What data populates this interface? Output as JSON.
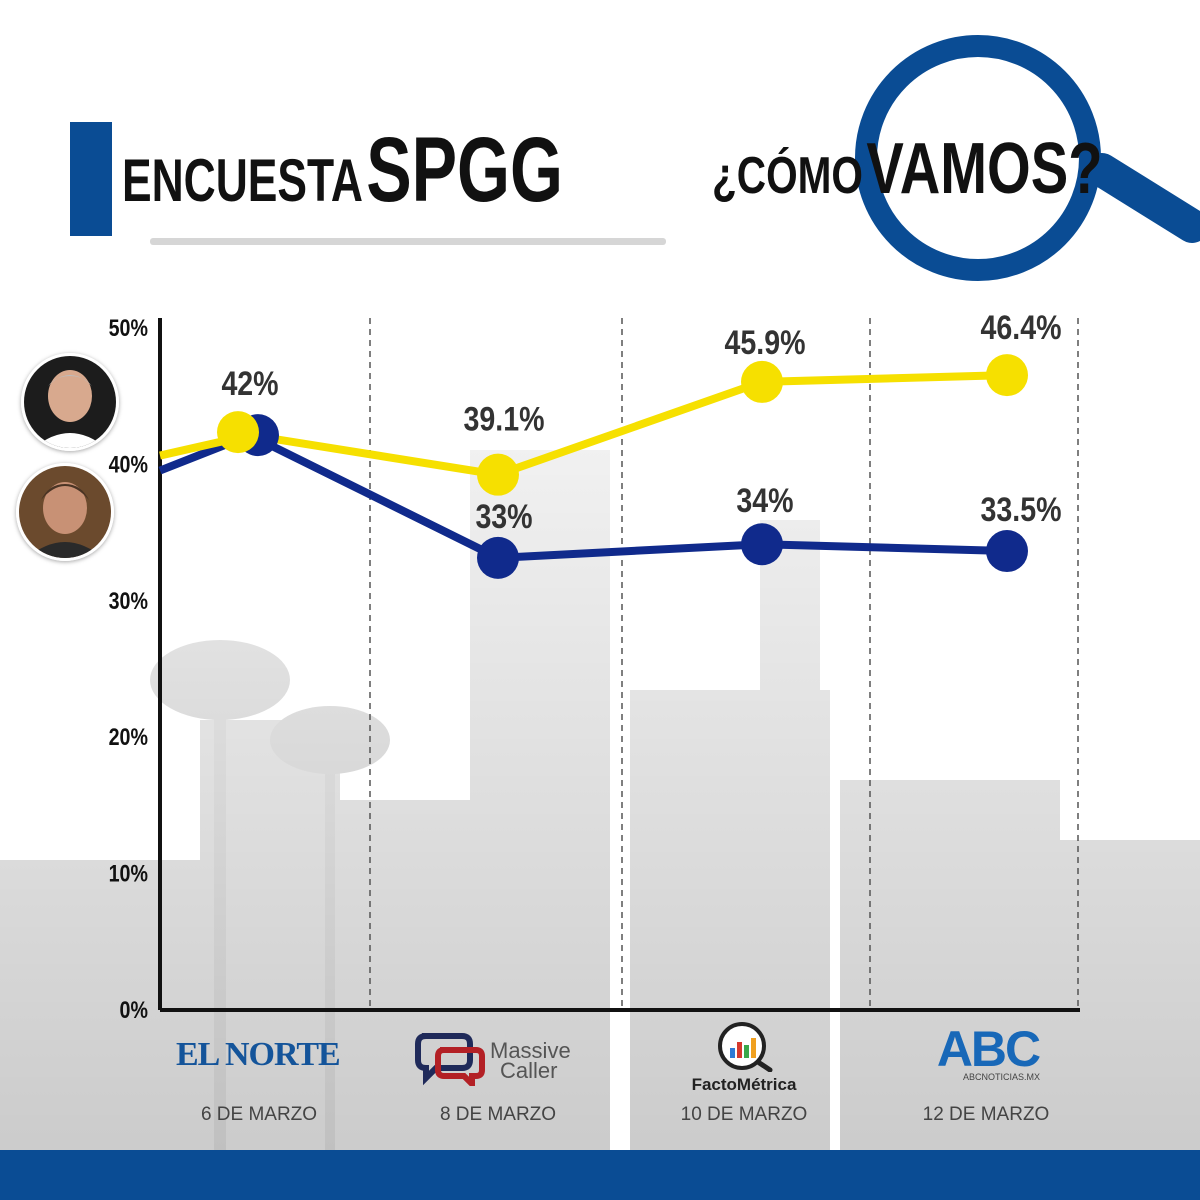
{
  "header": {
    "title_word1": "ENCUESTA",
    "title_word2": "SPGG",
    "tagline_part1": "¿CÓMO",
    "tagline_part2": "VAMOS?"
  },
  "colors": {
    "brand_blue": "#0a4c94",
    "series_yellow": "#f6e000",
    "series_navy": "#102a8c"
  },
  "sources": [
    {
      "name": "EL NORTE",
      "date": "6 DE MARZO"
    },
    {
      "name_line1": "Massive",
      "name_line2": "Caller",
      "date": "8 DE MARZO"
    },
    {
      "name": "FactoMétrica",
      "date": "10 DE MARZO"
    },
    {
      "name": "ABC",
      "sub": "ABCNOTICIAS.MX",
      "date": "12 DE MARZO"
    }
  ],
  "chart_data": {
    "type": "line",
    "categories": [
      "6 DE MARZO",
      "8 DE MARZO",
      "10 DE MARZO",
      "12 DE MARZO"
    ],
    "ylim": [
      0,
      50
    ],
    "yticks": [
      "0%",
      "10%",
      "20%",
      "30%",
      "40%",
      "50%"
    ],
    "yticks_values": [
      0,
      10,
      20,
      30,
      40,
      50
    ],
    "grid": "dashed vertical separators",
    "series": [
      {
        "color": "#f6e000",
        "values": [
          42,
          39.1,
          45.9,
          46.4
        ],
        "labels": [
          "42%",
          "39.1%",
          "45.9%",
          "46.4%"
        ]
      },
      {
        "color": "#102a8c",
        "values": [
          42,
          33,
          34,
          33.5
        ],
        "labels": [
          "",
          "33%",
          "34%",
          "33.5%"
        ]
      }
    ]
  }
}
